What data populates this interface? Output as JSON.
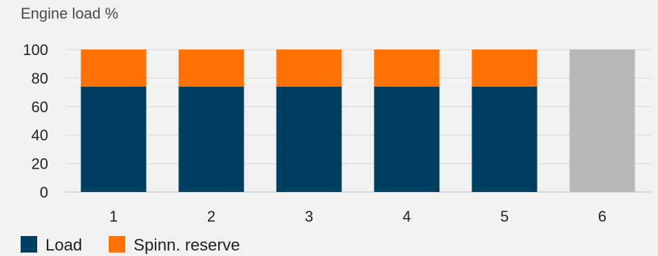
{
  "chart_data": {
    "type": "bar",
    "stacked": true,
    "title": "Engine load %",
    "xlabel": "",
    "ylabel": "",
    "categories": [
      "1",
      "2",
      "3",
      "4",
      "5",
      "6"
    ],
    "ylim": [
      0,
      100
    ],
    "yticks": [
      0,
      20,
      40,
      60,
      80,
      100
    ],
    "grid": true,
    "legend_position": "bottom-left",
    "series": [
      {
        "name": "Load",
        "color": "#003f5f",
        "values": [
          74,
          74,
          74,
          74,
          74,
          0
        ]
      },
      {
        "name": "Spinn. reserve",
        "color": "#ff7100",
        "values": [
          26,
          26,
          26,
          26,
          26,
          0
        ]
      }
    ],
    "unlabeled_bars": [
      {
        "category": "6",
        "value": 100,
        "color": "#b8b8b8"
      }
    ]
  }
}
